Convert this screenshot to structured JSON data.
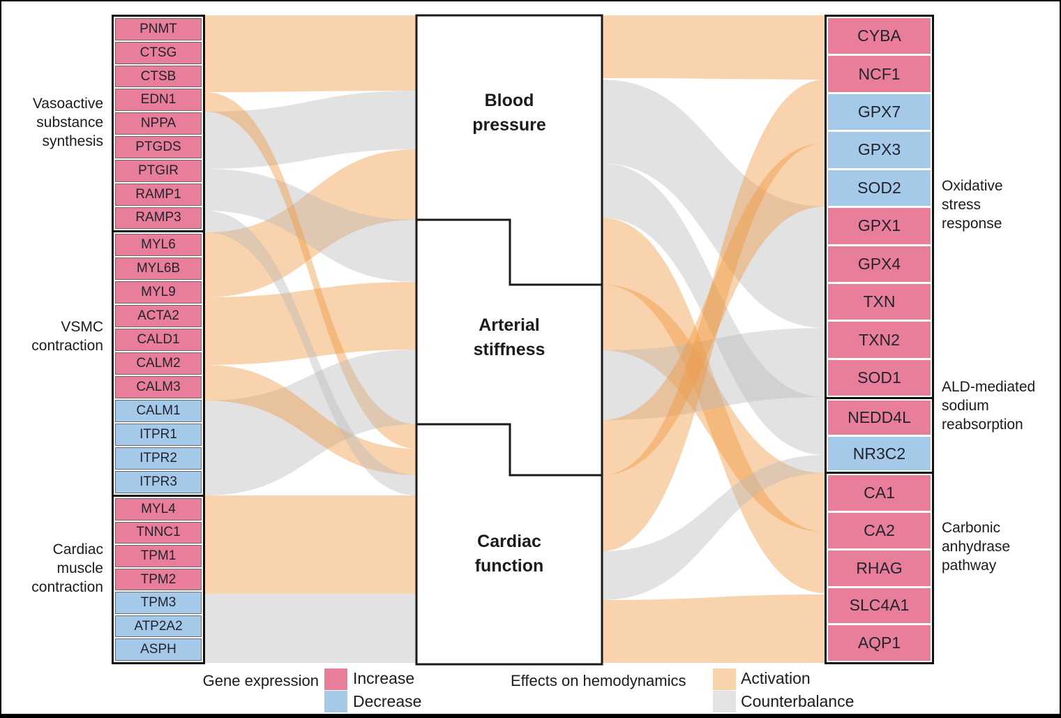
{
  "legend": {
    "gene_expression": {
      "title": "Gene expression",
      "increase": {
        "label": "Increase",
        "color": "#E87E9A"
      },
      "decrease": {
        "label": "Decrease",
        "color": "#A4C9E9"
      }
    },
    "hemodynamics": {
      "title": "Effects on hemodynamics",
      "activation": {
        "label": "Activation",
        "color": "#F8D3AB"
      },
      "counterbalance": {
        "label": "Counterbalance",
        "color": "#E3E3E3"
      }
    }
  },
  "colors": {
    "activation_ribbon": "#F0963C",
    "counterbalance_ribbon": "#BABABA",
    "ribbon_opacity": 0.42,
    "node_border": "#111111"
  },
  "middle_nodes": [
    {
      "label": "Blood\npressure"
    },
    {
      "label": "Arterial\nstiffness"
    },
    {
      "label": "Cardiac\nfunction"
    }
  ],
  "left_groups": [
    {
      "label": "Vasoactive\nsubstance\nsynthesis",
      "genes": [
        {
          "name": "PNMT",
          "expression": "increase"
        },
        {
          "name": "CTSG",
          "expression": "increase"
        },
        {
          "name": "CTSB",
          "expression": "increase"
        },
        {
          "name": "EDN1",
          "expression": "increase"
        },
        {
          "name": "NPPA",
          "expression": "increase"
        },
        {
          "name": "PTGDS",
          "expression": "increase"
        },
        {
          "name": "PTGIR",
          "expression": "increase"
        },
        {
          "name": "RAMP1",
          "expression": "increase"
        },
        {
          "name": "RAMP3",
          "expression": "increase"
        }
      ]
    },
    {
      "label": "VSMC\ncontraction",
      "genes": [
        {
          "name": "MYL6",
          "expression": "increase"
        },
        {
          "name": "MYL6B",
          "expression": "increase"
        },
        {
          "name": "MYL9",
          "expression": "increase"
        },
        {
          "name": "ACTA2",
          "expression": "increase"
        },
        {
          "name": "CALD1",
          "expression": "increase"
        },
        {
          "name": "CALM2",
          "expression": "increase"
        },
        {
          "name": "CALM3",
          "expression": "increase"
        },
        {
          "name": "CALM1",
          "expression": "decrease"
        },
        {
          "name": "ITPR1",
          "expression": "decrease"
        },
        {
          "name": "ITPR2",
          "expression": "decrease"
        },
        {
          "name": "ITPR3",
          "expression": "decrease"
        }
      ]
    },
    {
      "label": "Cardiac\nmuscle\ncontraction",
      "genes": [
        {
          "name": "MYL4",
          "expression": "increase"
        },
        {
          "name": "TNNC1",
          "expression": "increase"
        },
        {
          "name": "TPM1",
          "expression": "increase"
        },
        {
          "name": "TPM2",
          "expression": "increase"
        },
        {
          "name": "TPM3",
          "expression": "decrease"
        },
        {
          "name": "ATP2A2",
          "expression": "decrease"
        },
        {
          "name": "ASPH",
          "expression": "decrease"
        }
      ]
    }
  ],
  "right_groups": [
    {
      "label": "Oxidative\nstress\nresponse",
      "genes": [
        {
          "name": "CYBA",
          "expression": "increase"
        },
        {
          "name": "NCF1",
          "expression": "increase"
        },
        {
          "name": "GPX7",
          "expression": "decrease"
        },
        {
          "name": "GPX3",
          "expression": "decrease"
        },
        {
          "name": "SOD2",
          "expression": "decrease"
        },
        {
          "name": "GPX1",
          "expression": "increase"
        },
        {
          "name": "GPX4",
          "expression": "increase"
        },
        {
          "name": "TXN",
          "expression": "increase"
        },
        {
          "name": "TXN2",
          "expression": "increase"
        },
        {
          "name": "SOD1",
          "expression": "increase"
        }
      ]
    },
    {
      "label": "ALD-mediated\nsodium\nreabsorption",
      "genes": [
        {
          "name": "NEDD4L",
          "expression": "increase"
        },
        {
          "name": "NR3C2",
          "expression": "decrease"
        }
      ]
    },
    {
      "label": "Carbonic\nanhydrase\npathway",
      "genes": [
        {
          "name": "CA1",
          "expression": "increase"
        },
        {
          "name": "CA2",
          "expression": "increase"
        },
        {
          "name": "RHAG",
          "expression": "increase"
        },
        {
          "name": "SLC4A1",
          "expression": "increase"
        },
        {
          "name": "AQP1",
          "expression": "increase"
        }
      ]
    }
  ],
  "flows": {
    "left": [
      {
        "type": "activation",
        "from": [
          20,
          130
        ],
        "to": [
          20,
          128
        ]
      },
      {
        "type": "counterbalance",
        "from": [
          158,
          240
        ],
        "to": [
          128,
          212
        ]
      },
      {
        "type": "activation",
        "from": [
          331,
          424
        ],
        "to": [
          212,
          313
        ]
      },
      {
        "type": "counterbalance",
        "from": [
          240,
          300
        ],
        "to": [
          313,
          402
        ]
      },
      {
        "type": "activation",
        "from": [
          130,
          158
        ],
        "to": [
          606,
          641
        ]
      },
      {
        "type": "activation",
        "from": [
          424,
          521
        ],
        "to": [
          402,
          499
        ]
      },
      {
        "type": "counterbalance",
        "from": [
          572,
          641
        ],
        "to": [
          499,
          574
        ]
      },
      {
        "type": "counterbalance",
        "from": [
          641,
          708
        ],
        "to": [
          574,
          606
        ]
      },
      {
        "type": "activation",
        "from": [
          521,
          572
        ],
        "to": [
          641,
          679
        ]
      },
      {
        "type": "counterbalance",
        "from": [
          300,
          331
        ],
        "to": [
          679,
          708
        ]
      },
      {
        "type": "activation",
        "from": [
          708,
          849
        ],
        "to": [
          708,
          849
        ]
      },
      {
        "type": "counterbalance",
        "from": [
          849,
          948
        ],
        "to": [
          849,
          948
        ]
      }
    ],
    "right": [
      {
        "type": "activation",
        "from": [
          20,
          110
        ],
        "to": [
          20,
          112
        ]
      },
      {
        "type": "counterbalance",
        "from": [
          112,
          232
        ],
        "to": [
          294,
          468
        ]
      },
      {
        "type": "counterbalance",
        "from": [
          232,
          310
        ],
        "to": [
          567,
          650
        ]
      },
      {
        "type": "activation",
        "from": [
          310,
          406
        ],
        "to": [
          760,
          848
        ]
      },
      {
        "type": "activation",
        "from": [
          406,
          500
        ],
        "to": [
          676,
          760
        ]
      },
      {
        "type": "counterbalance",
        "from": [
          500,
          600
        ],
        "to": [
          468,
          567
        ]
      },
      {
        "type": "activation",
        "from": [
          600,
          679
        ],
        "to": [
          203,
          294
        ]
      },
      {
        "type": "activation",
        "from": [
          679,
          788
        ],
        "to": [
          112,
          203
        ]
      },
      {
        "type": "counterbalance",
        "from": [
          788,
          858
        ],
        "to": [
          650,
          676
        ]
      },
      {
        "type": "activation",
        "from": [
          858,
          948
        ],
        "to": [
          850,
          948
        ]
      }
    ]
  }
}
